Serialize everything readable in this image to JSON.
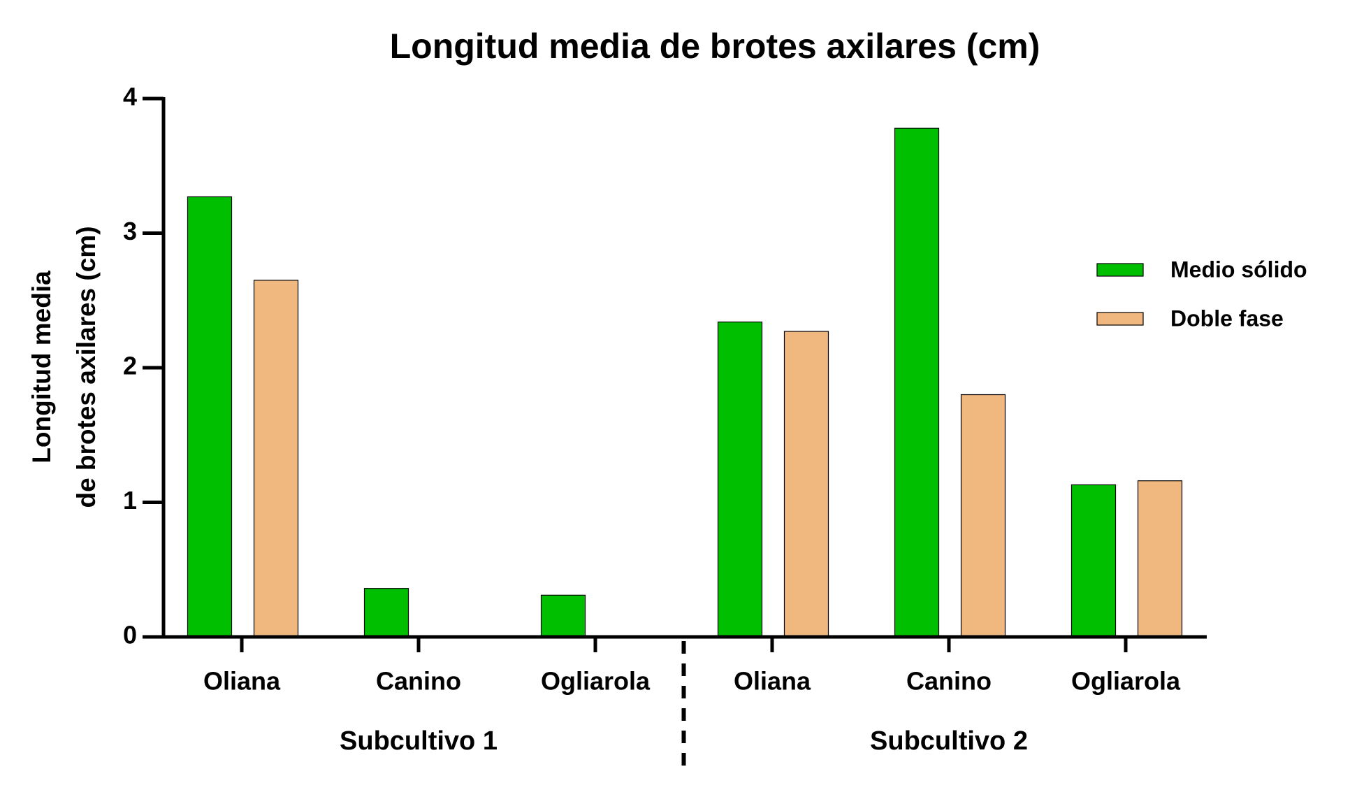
{
  "chart_data": {
    "type": "bar",
    "title": "Longitud media de brotes axilares (cm)",
    "ylabel": [
      "Longitud media",
      "de brotes axilares (cm)"
    ],
    "groups": [
      {
        "name": "Subcultivo 1",
        "categories": [
          "Oliana",
          "Canino",
          "Ogliarola"
        ]
      },
      {
        "name": "Subcultivo 2",
        "categories": [
          "Oliana",
          "Canino",
          "Ogliarola"
        ]
      }
    ],
    "series": [
      {
        "name": "Medio sólido",
        "color": "#00bf00",
        "values": [
          3.27,
          0.36,
          0.31,
          2.34,
          3.78,
          1.13
        ]
      },
      {
        "name": "Doble fase",
        "color": "#f0b77e",
        "values": [
          2.65,
          0,
          0,
          2.27,
          1.8,
          1.16
        ]
      }
    ],
    "ylim": [
      0,
      4
    ],
    "yticks": [
      0,
      1,
      2,
      3,
      4
    ],
    "legend": "right"
  }
}
